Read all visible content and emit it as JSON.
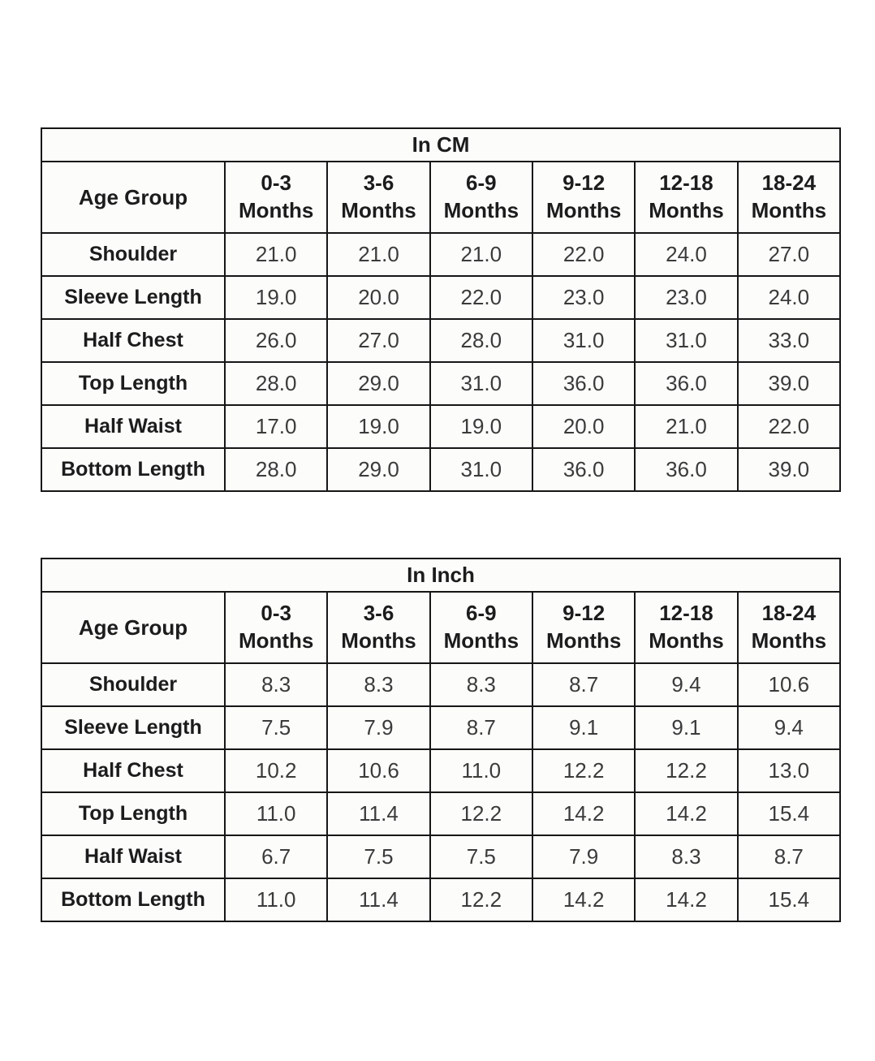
{
  "page": {
    "background": "#ffffff",
    "border_color": "#161616",
    "label_color": "#1c1c1c",
    "value_color": "#3b3b3b",
    "cell_background": "#fcfcfa"
  },
  "tables": [
    {
      "title": "In CM",
      "header": {
        "label": "Age Group",
        "columns": [
          "0-3\nMonths",
          "3-6\nMonths",
          "6-9\nMonths",
          "9-12\nMonths",
          "12-18\nMonths",
          "18-24\nMonths"
        ]
      },
      "rows": [
        {
          "label": "Shoulder",
          "values": [
            "21.0",
            "21.0",
            "21.0",
            "22.0",
            "24.0",
            "27.0"
          ]
        },
        {
          "label": "Sleeve Length",
          "values": [
            "19.0",
            "20.0",
            "22.0",
            "23.0",
            "23.0",
            "24.0"
          ]
        },
        {
          "label": "Half Chest",
          "values": [
            "26.0",
            "27.0",
            "28.0",
            "31.0",
            "31.0",
            "33.0"
          ]
        },
        {
          "label": "Top Length",
          "values": [
            "28.0",
            "29.0",
            "31.0",
            "36.0",
            "36.0",
            "39.0"
          ]
        },
        {
          "label": "Half Waist",
          "values": [
            "17.0",
            "19.0",
            "19.0",
            "20.0",
            "21.0",
            "22.0"
          ]
        },
        {
          "label": "Bottom Length",
          "values": [
            "28.0",
            "29.0",
            "31.0",
            "36.0",
            "36.0",
            "39.0"
          ]
        }
      ]
    },
    {
      "title": "In Inch",
      "header": {
        "label": "Age Group",
        "columns": [
          "0-3\nMonths",
          "3-6\nMonths",
          "6-9\nMonths",
          "9-12\nMonths",
          "12-18\nMonths",
          "18-24\nMonths"
        ]
      },
      "rows": [
        {
          "label": "Shoulder",
          "values": [
            "8.3",
            "8.3",
            "8.3",
            "8.7",
            "9.4",
            "10.6"
          ]
        },
        {
          "label": "Sleeve Length",
          "values": [
            "7.5",
            "7.9",
            "8.7",
            "9.1",
            "9.1",
            "9.4"
          ]
        },
        {
          "label": "Half Chest",
          "values": [
            "10.2",
            "10.6",
            "11.0",
            "12.2",
            "12.2",
            "13.0"
          ]
        },
        {
          "label": "Top Length",
          "values": [
            "11.0",
            "11.4",
            "12.2",
            "14.2",
            "14.2",
            "15.4"
          ]
        },
        {
          "label": "Half Waist",
          "values": [
            "6.7",
            "7.5",
            "7.5",
            "7.9",
            "8.3",
            "8.7"
          ]
        },
        {
          "label": "Bottom Length",
          "values": [
            "11.0",
            "11.4",
            "12.2",
            "14.2",
            "14.2",
            "15.4"
          ]
        }
      ]
    }
  ]
}
